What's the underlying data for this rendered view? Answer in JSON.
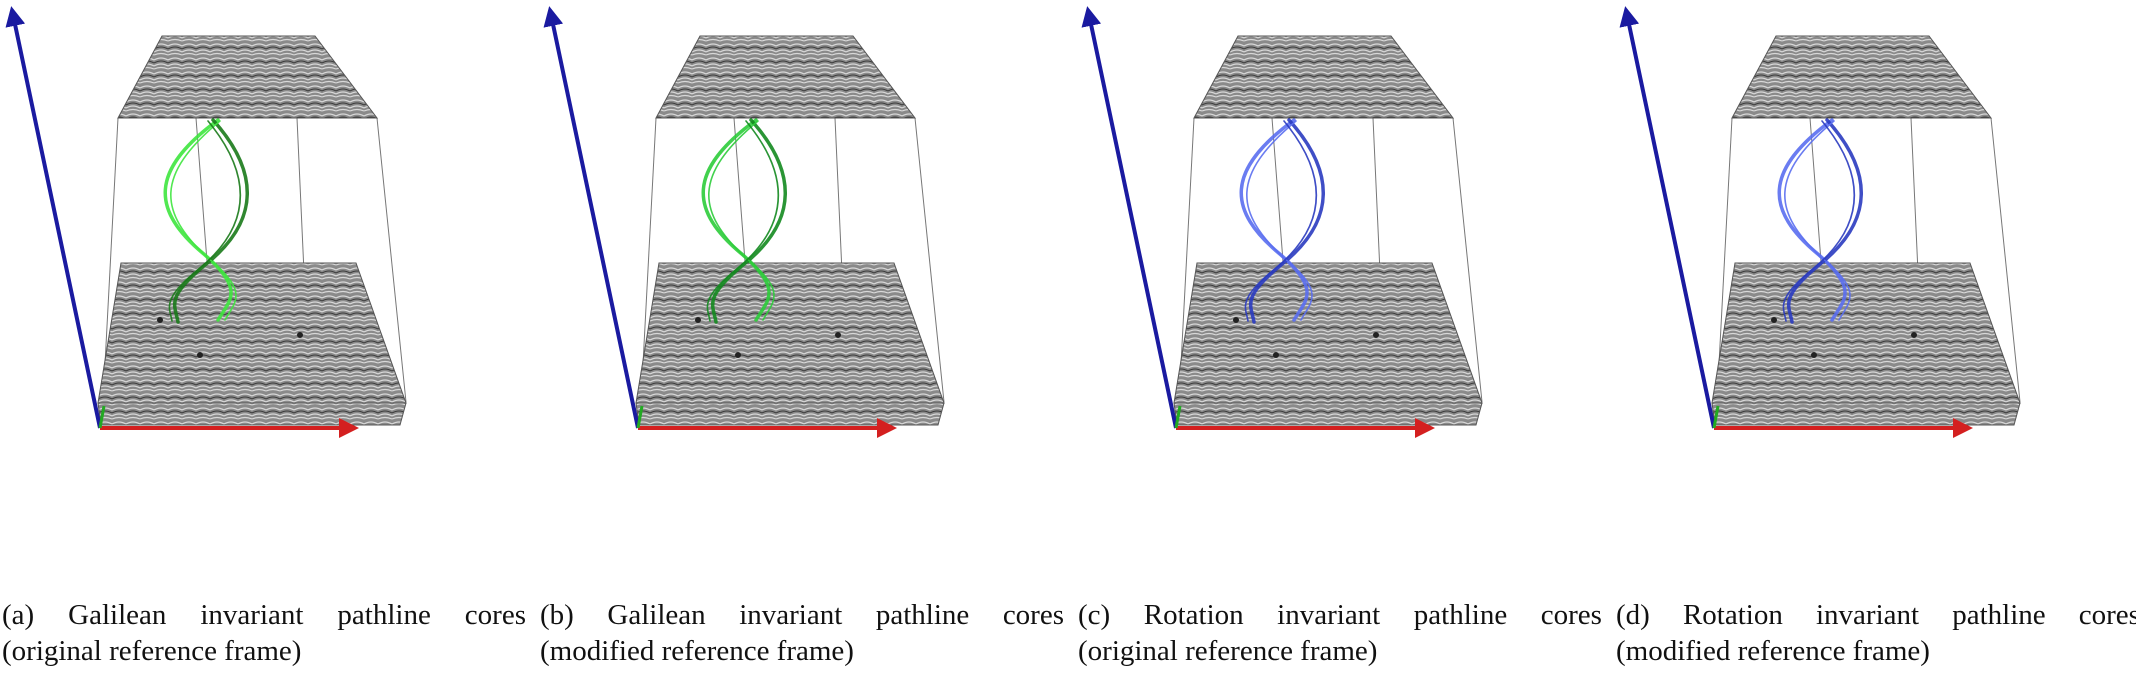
{
  "panels": [
    {
      "id": "a",
      "caption_line1": [
        "(a)",
        "Galilean",
        "invariant",
        "pathline",
        "cores"
      ],
      "caption_line2": "(original reference frame)",
      "core_color": "#3ee63e",
      "core_dark": "#1a7a1a"
    },
    {
      "id": "b",
      "caption_line1": [
        "(b)",
        "Galilean",
        "invariant",
        "pathline",
        "cores"
      ],
      "caption_line2": "(modified reference frame)",
      "core_color": "#2ccc3a",
      "core_dark": "#138a1f"
    },
    {
      "id": "c",
      "caption_line1": [
        "(c)",
        "Rotation",
        "invariant",
        "pathline",
        "cores"
      ],
      "caption_line2": "(original reference frame)",
      "core_color": "#5a6ef0",
      "core_dark": "#2a3bc0"
    },
    {
      "id": "d",
      "caption_line1": [
        "(d)",
        "Rotation",
        "invariant",
        "pathline",
        "cores"
      ],
      "caption_line2": "(modified reference frame)",
      "core_color": "#5a6ef0",
      "core_dark": "#2a3bc0"
    }
  ],
  "colors": {
    "axis_vertical": "#1a1aa0",
    "axis_horizontal": "#d42020",
    "axis_depth": "#22aa22",
    "plane_fill": "#8a8a8a",
    "box_lines": "#777777"
  }
}
